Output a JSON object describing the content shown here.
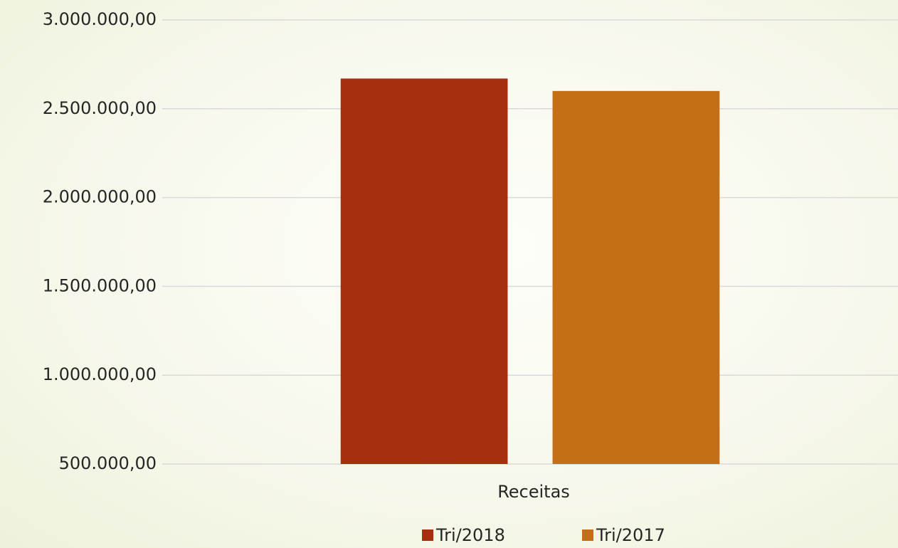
{
  "chart_data": {
    "type": "bar",
    "categories": [
      "Receitas"
    ],
    "series": [
      {
        "name": "Tri/2018",
        "color": "#a52f0f",
        "values": [
          2670000
        ]
      },
      {
        "name": "Tri/2017",
        "color": "#c46f15",
        "values": [
          2600000
        ]
      }
    ],
    "ylim": [
      500000,
      3000000
    ],
    "yticks": [
      {
        "value": 500000,
        "label": "500.000,00"
      },
      {
        "value": 1000000,
        "label": "1.000.000,00"
      },
      {
        "value": 1500000,
        "label": "1.500.000,00"
      },
      {
        "value": 2000000,
        "label": "2.000.000,00"
      },
      {
        "value": 2500000,
        "label": "2.500.000,00"
      },
      {
        "value": 3000000,
        "label": "3.000.000,00"
      }
    ],
    "grid": true,
    "legend": "bottom"
  }
}
